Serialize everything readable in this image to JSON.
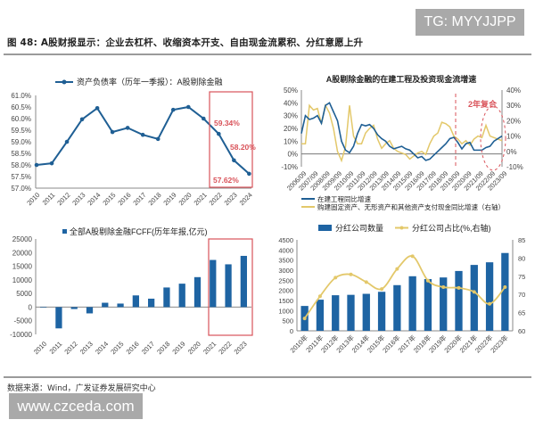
{
  "watermark_top": "TG: MYYJJPP",
  "figure_title": "图 48: A股财报显示：企业去杠杆、收缩资本开支、自由现金流累积、分红意愿上升",
  "source": "数据来源：Wind，广发证券发展研究中心",
  "watermark_bottom": "www.czceda.com",
  "colors": {
    "blue": "#1f5f94",
    "bar_blue": "#1e64a3",
    "gold": "#e3c86a",
    "red": "#d9535a"
  },
  "chart_data": [
    {
      "id": "debt_ratio",
      "type": "line",
      "title": "资产负债率（历年一季报）：A股剔除金融",
      "legend": [
        "资产负债率（历年一季报）：A股剔除金融"
      ],
      "categories": [
        "2010",
        "2011",
        "2012",
        "2013",
        "2014",
        "2015",
        "2016",
        "2017",
        "2018",
        "2019",
        "2020",
        "2021",
        "2022",
        "2023",
        "2024"
      ],
      "values": [
        58.0,
        58.07,
        59.0,
        59.97,
        60.45,
        59.42,
        59.6,
        59.3,
        59.12,
        60.38,
        60.5,
        60.0,
        59.34,
        58.2,
        57.62
      ],
      "ylim": [
        57.0,
        61.0
      ],
      "yticks": [
        "61.0%",
        "60.5%",
        "60.0%",
        "59.5%",
        "59.0%",
        "58.5%",
        "58.0%",
        "57.5%",
        "57.0%"
      ],
      "annotations": [
        "59.34%",
        "58.20%",
        "57.62%"
      ],
      "highlight_box": [
        "2022",
        "2024"
      ]
    },
    {
      "id": "capex_growth",
      "type": "line",
      "title": "A股剔除金融的在建工程及投资现金流增速",
      "x_labels": [
        "2006/09",
        "2007/09",
        "2008/09",
        "2009/09",
        "2010/09",
        "2011/09",
        "2012/09",
        "2013/09",
        "2014/09",
        "2015/09",
        "2016/09",
        "2017/09",
        "2018/09",
        "2019/09",
        "2020/09",
        "2021/09",
        "2022/09",
        "2023/09"
      ],
      "yticks_left": [
        "50%",
        "40%",
        "30%",
        "20%",
        "10%",
        "0%",
        "-10%"
      ],
      "yticks_right": [
        "40%",
        "30%",
        "20%",
        "10%",
        "0%",
        "-10%"
      ],
      "ylim_left": [
        -10,
        50
      ],
      "ylim_right": [
        -10,
        40
      ],
      "series": [
        {
          "name": "在建工程同比增速",
          "axis": "left",
          "values": [
            16,
            30,
            27,
            28,
            30,
            24,
            38,
            40,
            33,
            26,
            10,
            3,
            1,
            6,
            16,
            23,
            22,
            23,
            20,
            15,
            12,
            10,
            6,
            4,
            5,
            6,
            4,
            3,
            0,
            -3,
            -2,
            -5,
            -4,
            -1,
            2,
            5,
            8,
            12,
            13,
            9,
            4,
            8,
            9,
            3,
            3,
            3,
            5,
            6,
            10,
            12,
            14
          ]
        },
        {
          "name": "购建固定资产、无形资产和其他资产支付现金同比增速（右轴）",
          "axis": "right",
          "values": [
            5,
            5,
            30,
            27,
            28,
            18,
            30,
            25,
            15,
            0,
            -6,
            3,
            30,
            10,
            5,
            5,
            12,
            15,
            17,
            8,
            2,
            5,
            7,
            2,
            0,
            -1,
            -2,
            -5,
            -3,
            -1,
            0,
            -2,
            5,
            10,
            12,
            19,
            18,
            16,
            10,
            8,
            5,
            7,
            4,
            8,
            10,
            9,
            17,
            10,
            9,
            8,
            7
          ]
        }
      ],
      "annotation": "2年复合",
      "vline_at": "2020/09"
    },
    {
      "id": "fcff",
      "type": "bar",
      "legend": [
        "全部A股剔除金融FCFF(历年年报,亿元)"
      ],
      "categories": [
        "2010",
        "2011",
        "2012",
        "2013",
        "2014",
        "2015",
        "2016",
        "2017",
        "2018",
        "2019",
        "2020",
        "2021",
        "2022",
        "2023"
      ],
      "values": [
        -200,
        -7800,
        -700,
        -2300,
        1600,
        1300,
        4300,
        3100,
        7200,
        8600,
        11000,
        17300,
        15700,
        18800
      ],
      "ylim": [
        -10000,
        25000
      ],
      "yticks": [
        "25000",
        "20000",
        "15000",
        "10000",
        "5000",
        "0",
        "-5000",
        "-10000"
      ],
      "highlight_box": [
        "2021",
        "2023"
      ]
    },
    {
      "id": "dividend",
      "type": "bar+line",
      "legend": [
        "分红公司数量",
        "分红公司占比(%,右轴)"
      ],
      "categories": [
        "2010年",
        "2011年",
        "2012年",
        "2013年",
        "2014年",
        "2015年",
        "2016年",
        "2017年",
        "2018年",
        "2019年",
        "2020年",
        "2021年",
        "2022年",
        "2023年"
      ],
      "series": [
        {
          "name": "分红公司数量",
          "type": "bar",
          "axis": "left",
          "values": [
            1230,
            1540,
            1760,
            1780,
            1830,
            1930,
            2260,
            2700,
            2560,
            2640,
            2960,
            3260,
            3390,
            3850
          ]
        },
        {
          "name": "分红公司占比(%,右轴)",
          "type": "line",
          "axis": "right",
          "values": [
            63.4,
            69.5,
            74.6,
            75.5,
            73.4,
            71.5,
            77.0,
            80.5,
            73.8,
            72.0,
            71.8,
            70.7,
            67.4,
            72.0
          ]
        }
      ],
      "ylim_left": [
        0,
        4500
      ],
      "ylim_right": [
        60,
        85
      ],
      "yticks_left": [
        "4500",
        "4000",
        "3500",
        "3000",
        "2500",
        "2000",
        "1500",
        "1000",
        "500",
        "0"
      ],
      "yticks_right": [
        "85",
        "80",
        "75",
        "70",
        "65",
        "60"
      ]
    }
  ]
}
